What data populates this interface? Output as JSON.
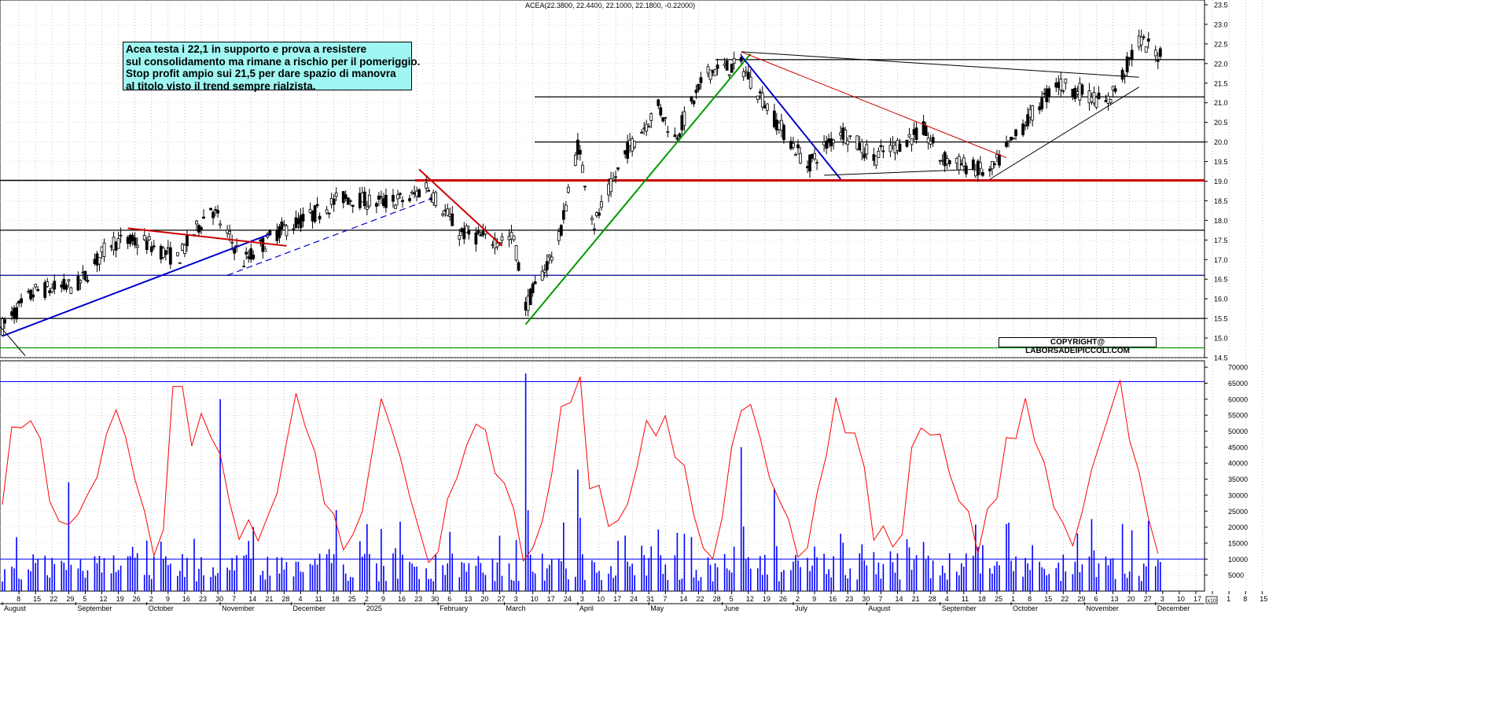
{
  "header": {
    "quote": "ACEA(22.3800, 22.4400, 22.1000, 22.1800, -0.22000)"
  },
  "annotation": {
    "lines": [
      "Acea testa i 22,1 in supporto e prova  a resistere",
      "sul consolidamento ma rimane a rischio per il pomeriggio.",
      "Stop profit ampio sui 21,5 per dare spazio di manovra",
      "al titolo visto il trend sempre rialzista."
    ]
  },
  "copyright": "COPYRIGHT@ LABORSADEIPICCOLI.COM",
  "scale_marker": "x10",
  "colors": {
    "support_red": "#cc0000",
    "trend_blue": "#0000cc",
    "trend_green": "#009900",
    "oscillator": "#ff0000",
    "volume": "#0000ff",
    "annotation_bg": "#9ff6f2"
  },
  "chart_data": [
    {
      "type": "candlestick",
      "symbol": "ACEA",
      "ylim": [
        14.5,
        23.5
      ],
      "y_ticks": [
        "14.5",
        "15.0",
        "15.5",
        "16.0",
        "16.5",
        "17.0",
        "17.5",
        "18.0",
        "18.5",
        "19.0",
        "19.5",
        "20.0",
        "20.5",
        "21.0",
        "21.5",
        "22.0",
        "22.5",
        "23.0",
        "23.5"
      ],
      "last": {
        "open": 22.38,
        "high": 22.44,
        "low": 22.1,
        "close": 22.18,
        "change": -0.22
      },
      "levels": [
        {
          "value": 14.75,
          "role": "support",
          "color": "#009900"
        },
        {
          "value": 15.5,
          "role": "support",
          "color": "#000000"
        },
        {
          "value": 16.6,
          "role": "support",
          "color": "#000099"
        },
        {
          "value": 17.75,
          "role": "support",
          "color": "#000000"
        },
        {
          "value": 19.02,
          "role": "support",
          "color": "#cc0000"
        },
        {
          "value": 20.0,
          "role": "support",
          "color": "#000000"
        },
        {
          "value": 21.15,
          "role": "support",
          "color": "#000000"
        },
        {
          "value": 22.1,
          "role": "support",
          "color": "#000000"
        }
      ],
      "trendlines": [
        {
          "from": [
            "2024-08-01",
            15.05
          ],
          "to": [
            "2024-11-22",
            17.65
          ],
          "color": "#0000cc"
        },
        {
          "from": [
            "2024-11-04",
            16.6
          ],
          "to": [
            "2025-01-29",
            18.55
          ],
          "color": "#0000cc",
          "dashed": true
        },
        {
          "from": [
            "2024-09-23",
            17.8
          ],
          "to": [
            "2024-11-29",
            17.35
          ],
          "color": "#cc0000"
        },
        {
          "from": [
            "2025-01-24",
            19.3
          ],
          "to": [
            "2025-02-28",
            17.35
          ],
          "color": "#cc0000"
        },
        {
          "from": [
            "2025-03-10",
            15.35
          ],
          "to": [
            "2025-06-13",
            22.25
          ],
          "color": "#009900"
        },
        {
          "from": [
            "2025-06-09",
            22.2
          ],
          "to": [
            "2025-07-21",
            19.05
          ],
          "color": "#0000cc"
        },
        {
          "from": [
            "2025-06-09",
            22.3
          ],
          "to": [
            "2025-09-29",
            19.6
          ],
          "color": "#cc0000"
        },
        {
          "from": [
            "2025-06-09",
            22.3
          ],
          "to": [
            "2025-11-24",
            21.65
          ],
          "color": "#000000"
        },
        {
          "from": [
            "2025-09-22",
            19.05
          ],
          "to": [
            "2025-11-24",
            21.4
          ],
          "color": "#000000"
        },
        {
          "from": [
            "2025-07-14",
            19.15
          ],
          "to": [
            "2025-09-15",
            19.3
          ],
          "color": "#000000"
        }
      ],
      "anchors": [
        [
          "2024-08-01",
          15.3
        ],
        [
          "2024-08-15",
          16.2
        ],
        [
          "2024-09-02",
          16.35
        ],
        [
          "2024-09-16",
          17.45
        ],
        [
          "2024-09-30",
          17.45
        ],
        [
          "2024-10-14",
          17.0
        ],
        [
          "2024-10-28",
          18.35
        ],
        [
          "2024-11-11",
          16.95
        ],
        [
          "2024-11-25",
          17.7
        ],
        [
          "2024-12-09",
          18.1
        ],
        [
          "2024-12-23",
          18.6
        ],
        [
          "2025-01-06",
          18.45
        ],
        [
          "2025-01-20",
          18.55
        ],
        [
          "2025-01-27",
          18.9
        ],
        [
          "2025-02-10",
          17.7
        ],
        [
          "2025-02-24",
          17.5
        ],
        [
          "2025-03-05",
          17.55
        ],
        [
          "2025-03-10",
          15.8
        ],
        [
          "2025-03-24",
          17.5
        ],
        [
          "2025-04-01",
          19.9
        ],
        [
          "2025-04-08",
          17.9
        ],
        [
          "2025-04-22",
          19.8
        ],
        [
          "2025-05-05",
          20.9
        ],
        [
          "2025-05-12",
          20.1
        ],
        [
          "2025-05-26",
          21.8
        ],
        [
          "2025-06-09",
          21.95
        ],
        [
          "2025-06-16",
          21.3
        ],
        [
          "2025-06-23",
          20.6
        ],
        [
          "2025-07-07",
          19.4
        ],
        [
          "2025-07-21",
          20.3
        ],
        [
          "2025-08-04",
          19.6
        ],
        [
          "2025-08-25",
          20.3
        ],
        [
          "2025-09-01",
          19.6
        ],
        [
          "2025-09-22",
          19.2
        ],
        [
          "2025-10-06",
          20.4
        ],
        [
          "2025-10-20",
          21.5
        ],
        [
          "2025-11-03",
          21.2
        ],
        [
          "2025-11-10",
          20.95
        ],
        [
          "2025-11-17",
          21.7
        ],
        [
          "2025-11-24",
          22.6
        ],
        [
          "2025-12-03",
          22.18
        ]
      ]
    },
    {
      "type": "bar",
      "name": "volume",
      "ylim": [
        0,
        72000
      ],
      "y_ticks": [
        "5000",
        "10000",
        "15000",
        "20000",
        "25000",
        "30000",
        "35000",
        "40000",
        "45000",
        "50000",
        "55000",
        "60000",
        "65000",
        "70000"
      ],
      "reference_levels": [
        10000,
        65500
      ],
      "spikes": [
        [
          "2024-08-29",
          34000
        ],
        [
          "2024-11-01",
          60000
        ],
        [
          "2025-03-10",
          68000
        ],
        [
          "2025-04-01",
          38000
        ],
        [
          "2025-06-09",
          45000
        ],
        [
          "2025-06-23",
          32000
        ],
        [
          "2025-11-17",
          21000
        ]
      ]
    },
    {
      "type": "line",
      "name": "volume oscillator",
      "ylim": [
        0,
        72000
      ],
      "peaks": [
        [
          "2024-10-14",
          64000
        ],
        [
          "2025-04-01",
          68000
        ],
        [
          "2025-11-17",
          66000
        ]
      ]
    }
  ],
  "x_axis": {
    "day_ticks": [
      "8",
      "15",
      "22",
      "29",
      "5",
      "12",
      "19",
      "26",
      "2",
      "9",
      "16",
      "23",
      "30",
      "7",
      "14",
      "21",
      "28",
      "4",
      "11",
      "18",
      "25",
      "2",
      "9",
      "16",
      "23",
      "30",
      "6",
      "13",
      "20",
      "27",
      "3",
      "10",
      "17",
      "24",
      "3",
      "10",
      "17",
      "24",
      "31",
      "7",
      "14",
      "22",
      "28",
      "5",
      "12",
      "19",
      "26",
      "2",
      "9",
      "16",
      "23",
      "30",
      "7",
      "14",
      "21",
      "28",
      "4",
      "11",
      "18",
      "25",
      "1",
      "8",
      "15",
      "22",
      "29",
      "6",
      "13",
      "20",
      "27",
      "3",
      "10",
      "17",
      "24",
      "1",
      "8",
      "15"
    ],
    "months": [
      "August",
      "September",
      "October",
      "November",
      "December",
      "2025",
      "February",
      "March",
      "April",
      "May",
      "June",
      "July",
      "August",
      "September",
      "October",
      "November",
      "December"
    ]
  }
}
